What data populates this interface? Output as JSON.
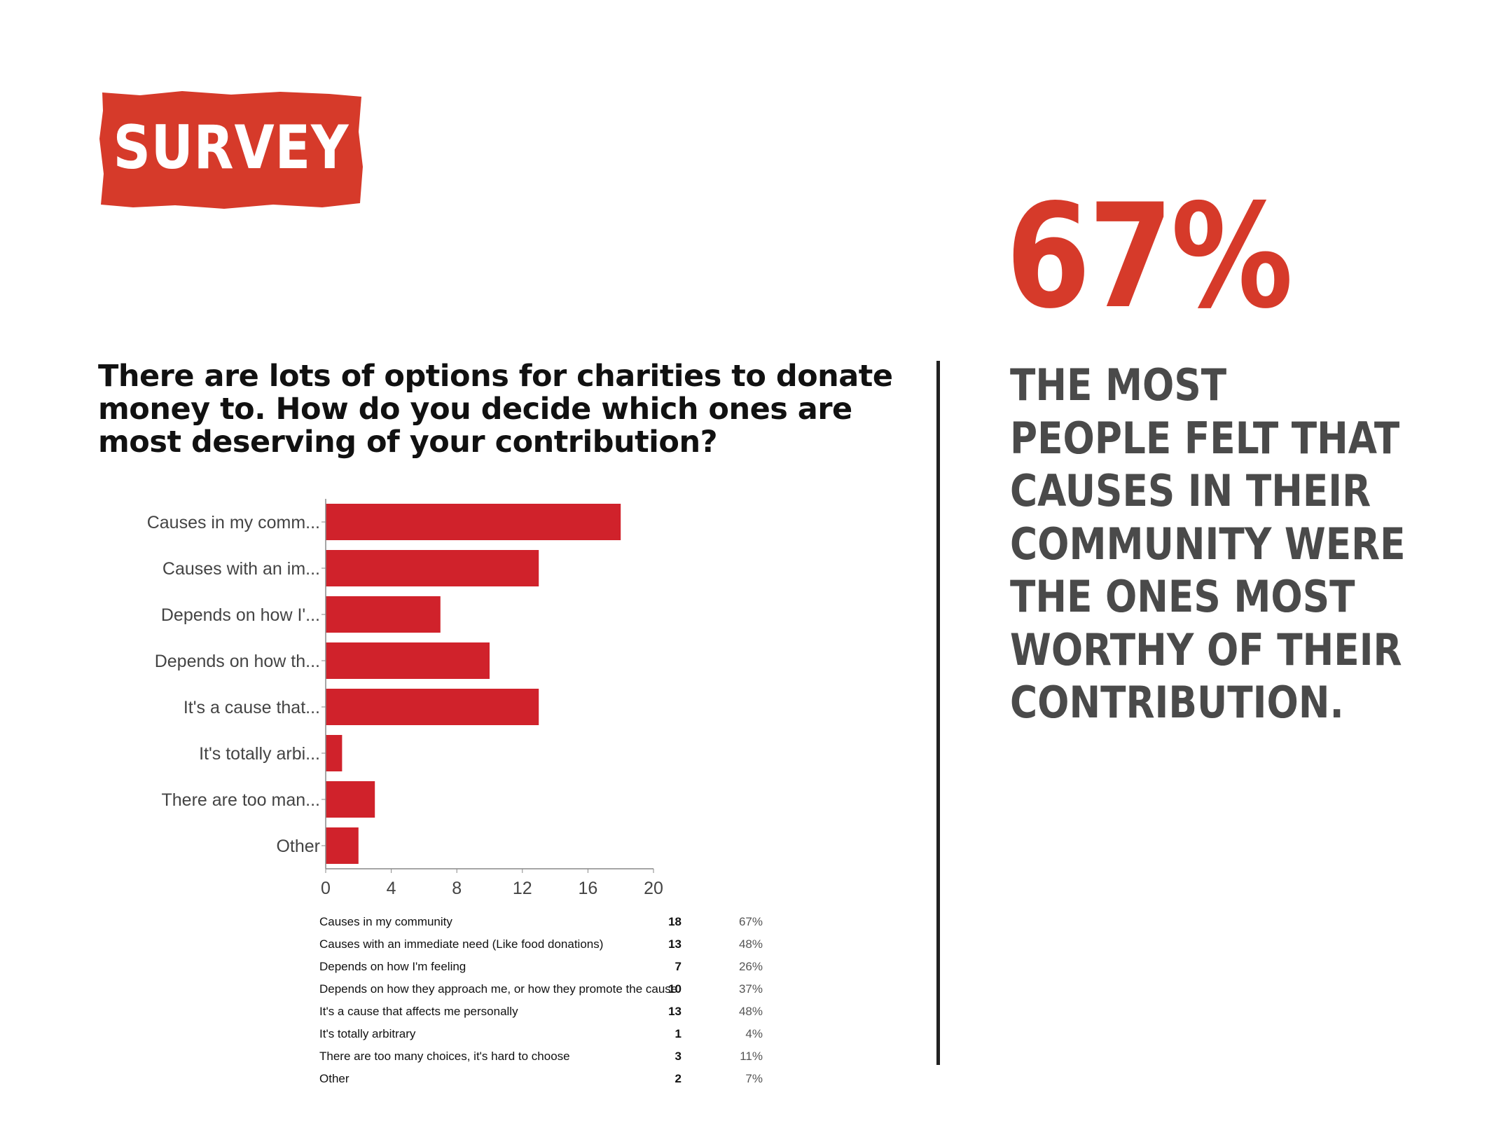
{
  "badge": {
    "label": "SURVEY",
    "color": "#d63a2a"
  },
  "question": "There are lots of options for charities to donate money to. How do you decide which ones are most deserving of your contribution?",
  "highlight": {
    "value": "67%",
    "text": "THE MOST\nPEOPLE FELT THAT\nCAUSES IN THEIR\nCOMMUNITY WERE\nTHE ONES MOST\nWORTHY OF THEIR\nCONTRIBUTION.",
    "value_color": "#d63a2a",
    "text_color": "#4a4a4a"
  },
  "chart_data": {
    "type": "bar",
    "orientation": "horizontal",
    "categories": [
      "Causes in my comm...",
      "Causes with an im...",
      "Depends on how I'...",
      "Depends on how th...",
      "It's a cause that...",
      "It's totally arbi...",
      "There are too man...",
      "Other"
    ],
    "values": [
      18,
      13,
      7,
      10,
      13,
      1,
      3,
      2
    ],
    "xlim": [
      0,
      20
    ],
    "xticks": [
      "0",
      "4",
      "8",
      "12",
      "16",
      "20"
    ],
    "bar_color": "#d0222b",
    "grid": false
  },
  "table": [
    {
      "label": "Causes in my community",
      "count": "18",
      "pct": "67%"
    },
    {
      "label": "Causes with an immediate need (Like food donations)",
      "count": "13",
      "pct": "48%"
    },
    {
      "label": "Depends on how I'm feeling",
      "count": "7",
      "pct": "26%"
    },
    {
      "label": "Depends on how they approach me, or how they promote the cause",
      "count": "10",
      "pct": "37%"
    },
    {
      "label": "It's a cause that affects me personally",
      "count": "13",
      "pct": "48%"
    },
    {
      "label": "It's totally arbitrary",
      "count": "1",
      "pct": "4%"
    },
    {
      "label": "There are too many choices, it's hard to choose",
      "count": "3",
      "pct": "11%"
    },
    {
      "label": "Other",
      "count": "2",
      "pct": "7%"
    }
  ]
}
